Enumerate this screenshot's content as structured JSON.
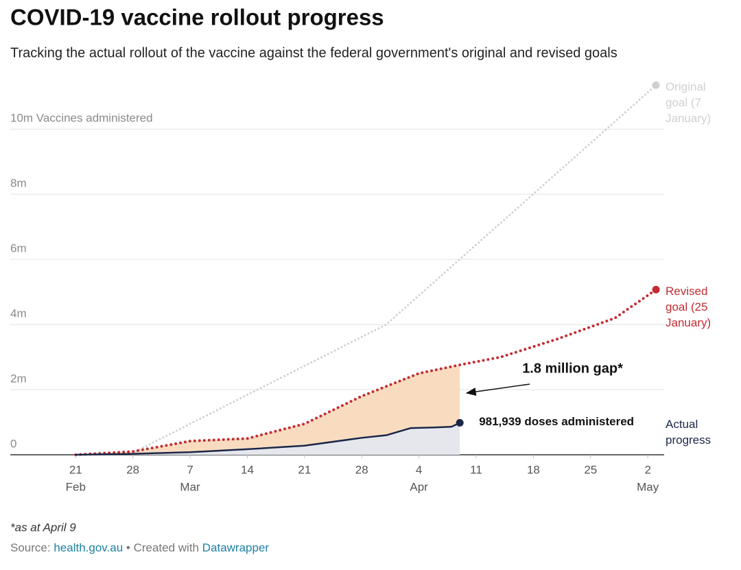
{
  "chart_data": {
    "type": "line",
    "title": "COVID-19 vaccine rollout progress",
    "subtitle": "Tracking the actual rollout of the vaccine against the federal government's original and revised goals",
    "xlim": [
      "02-13",
      "05-04"
    ],
    "xticks": [
      {
        "value": "02-21",
        "label": "21"
      },
      {
        "value": "02-28",
        "label": "28"
      },
      {
        "value": "03-07",
        "label": "7"
      },
      {
        "value": "03-14",
        "label": "14"
      },
      {
        "value": "03-21",
        "label": "21"
      },
      {
        "value": "03-28",
        "label": "28"
      },
      {
        "value": "04-04",
        "label": "4"
      },
      {
        "value": "04-11",
        "label": "11"
      },
      {
        "value": "04-18",
        "label": "18"
      },
      {
        "value": "04-25",
        "label": "25"
      },
      {
        "value": "05-02",
        "label": "2"
      }
    ],
    "xtick_months": [
      {
        "value": "02-21",
        "label": "Feb"
      },
      {
        "value": "03-07",
        "label": "Mar"
      },
      {
        "value": "04-04",
        "label": "Apr"
      },
      {
        "value": "05-02",
        "label": "May"
      }
    ],
    "ylim": [
      0,
      11500000
    ],
    "yticks": [
      0,
      {
        "value": 2000000,
        "label": "2m"
      },
      {
        "value": 4000000,
        "label": "4m"
      },
      {
        "value": 6000000,
        "label": "6m"
      },
      {
        "value": 8000000,
        "label": "8m"
      },
      {
        "value": 10000000,
        "label": "10m Vaccines administered"
      }
    ],
    "grid": true,
    "series": [
      {
        "name": "Original goal (7 January)",
        "color": "#cfd0d4",
        "style": "dotted",
        "x": [
          "02-28",
          "03-31",
          "05-03"
        ],
        "values": [
          60000,
          4000000,
          11350000
        ]
      },
      {
        "name": "Revised goal (25 January)",
        "color": "#c42b32",
        "style": "dotted",
        "x": [
          "02-21",
          "02-28",
          "03-07",
          "03-14",
          "03-21",
          "03-28",
          "04-04",
          "04-09",
          "04-14",
          "04-21",
          "04-28",
          "05-03"
        ],
        "values": [
          0,
          100000,
          420000,
          500000,
          950000,
          1800000,
          2500000,
          2760000,
          3000000,
          3560000,
          4200000,
          5070000
        ]
      },
      {
        "name": "Actual progress",
        "color": "#1b2648",
        "style": "solid",
        "x": [
          "02-21",
          "02-28",
          "03-07",
          "03-14",
          "03-21",
          "03-28",
          "03-31",
          "04-03",
          "04-06",
          "04-08",
          "04-09"
        ],
        "values": [
          0,
          30000,
          80000,
          170000,
          280000,
          520000,
          600000,
          820000,
          840000,
          860000,
          981939
        ],
        "value_labels": [
          null,
          null,
          null,
          null,
          null,
          null,
          null,
          null,
          null,
          null,
          "981,939 doses administered"
        ]
      }
    ],
    "gap_color": "#f9dcc0",
    "actual_area_color": "#e6e7ed",
    "annotation": "1.8 million gap*",
    "note": "*as at April 9",
    "source": {
      "label": "Source:",
      "link": "health.gov.au",
      "separator": "•",
      "credit": "Created with",
      "credit_link": "Datawrapper"
    }
  }
}
